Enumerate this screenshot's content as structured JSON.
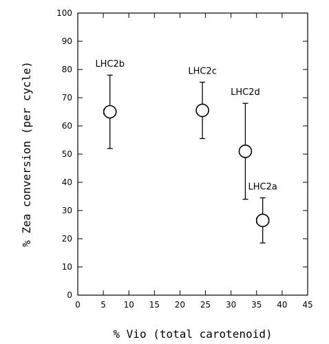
{
  "chart_data": {
    "type": "scatter",
    "title": "",
    "xlabel": "% Vio (total carotenoid)",
    "ylabel": "% Zea conversion (per cycle)",
    "xlim": [
      0,
      45
    ],
    "ylim": [
      0,
      100
    ],
    "x_ticks": [
      0,
      5,
      10,
      15,
      20,
      25,
      30,
      35,
      40,
      45
    ],
    "y_ticks": [
      0,
      10,
      20,
      30,
      40,
      50,
      60,
      70,
      80,
      90,
      100
    ],
    "grid": false,
    "points": [
      {
        "label": "LHC2b",
        "x": 6.3,
        "y": 65,
        "y_err_low": 52,
        "y_err_high": 78,
        "x_err_low": 5.1,
        "x_err_high": 7.4
      },
      {
        "label": "LHC2c",
        "x": 24.4,
        "y": 65.5,
        "y_err_low": 55.5,
        "y_err_high": 75.5,
        "x_err_low": 24.4,
        "x_err_high": 24.4
      },
      {
        "label": "LHC2d",
        "x": 32.8,
        "y": 51,
        "y_err_low": 34,
        "y_err_high": 68,
        "x_err_low": 32.8,
        "x_err_high": 32.8
      },
      {
        "label": "LHC2a",
        "x": 36.2,
        "y": 26.5,
        "y_err_low": 18.5,
        "y_err_high": 34.5,
        "x_err_low": 35.0,
        "x_err_high": 37.4
      }
    ]
  }
}
